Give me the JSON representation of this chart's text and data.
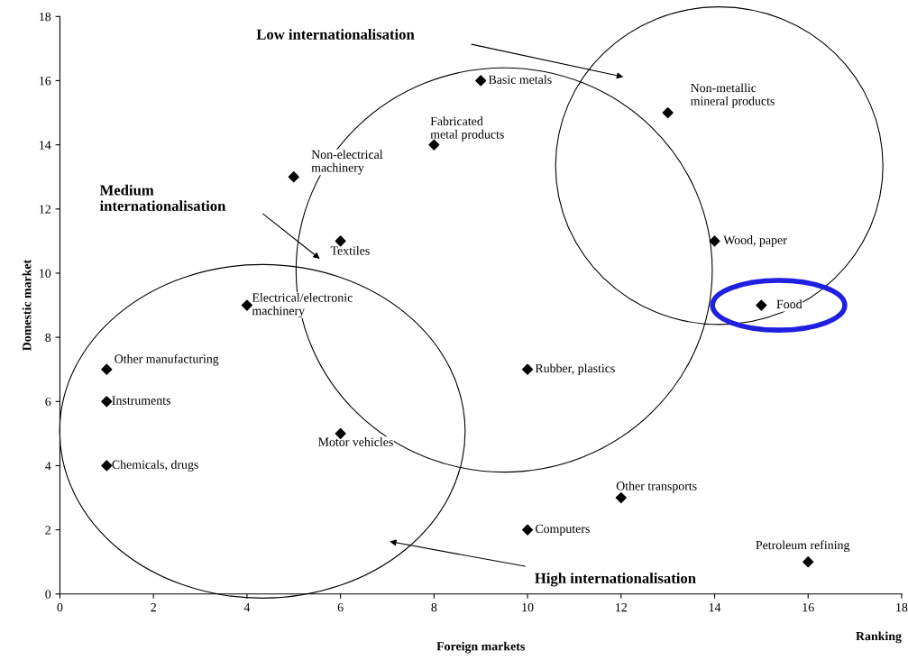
{
  "chart_data": {
    "type": "scatter",
    "xlabel": "Foreign markets",
    "ylabel": "Domestic market",
    "x": [
      9,
      13,
      8,
      5,
      6,
      14,
      4,
      15,
      1,
      10,
      1,
      6,
      1,
      12,
      10,
      16
    ],
    "series": [
      {
        "color": "#000000",
        "values": [
          16,
          15,
          14,
          13,
          11,
          11,
          9,
          9,
          7,
          7,
          6,
          5,
          4,
          3,
          2,
          1
        ]
      }
    ],
    "marker": "diamond",
    "grid": false,
    "xlim": [
      0,
      18
    ],
    "xticks": [
      0,
      2,
      4,
      6,
      8,
      10,
      12,
      14,
      16,
      18
    ],
    "ylim": [
      0,
      18
    ],
    "yticks": [
      0,
      2,
      4,
      6,
      8,
      10,
      12,
      14,
      16,
      18
    ],
    "annotations": [
      {
        "text": "Basic metals",
        "x": 9,
        "y": 16
      },
      {
        "text": "Non-metallic\nmineral products",
        "x": 13,
        "y": 15
      },
      {
        "text": "Fabricated\nmetal products",
        "x": 8,
        "y": 14
      },
      {
        "text": "Non-electrical\nmachinery",
        "x": 5,
        "y": 13
      },
      {
        "text": "Textiles",
        "x": 6,
        "y": 11
      },
      {
        "text": "Wood, paper",
        "x": 14,
        "y": 11
      },
      {
        "text": "Electrical/electronic\nmachinery",
        "x": 4,
        "y": 9
      },
      {
        "text": "Food",
        "x": 15,
        "y": 9
      },
      {
        "text": "Other manufacturing",
        "x": 1,
        "y": 7
      },
      {
        "text": "Rubber, plastics",
        "x": 10,
        "y": 7
      },
      {
        "text": "Instruments",
        "x": 1,
        "y": 6
      },
      {
        "text": "Motor vehicles",
        "x": 6,
        "y": 5
      },
      {
        "text": "Chemicals, drugs",
        "x": 1,
        "y": 4
      },
      {
        "text": "Other transports",
        "x": 12,
        "y": 3
      },
      {
        "text": "Computers",
        "x": 10,
        "y": 2
      },
      {
        "text": "Petroleum refining",
        "x": 16,
        "y": 1
      },
      "Low internationalisation",
      "Medium\ninternationalisation",
      "High internationalisation",
      "Ranking"
    ]
  }
}
